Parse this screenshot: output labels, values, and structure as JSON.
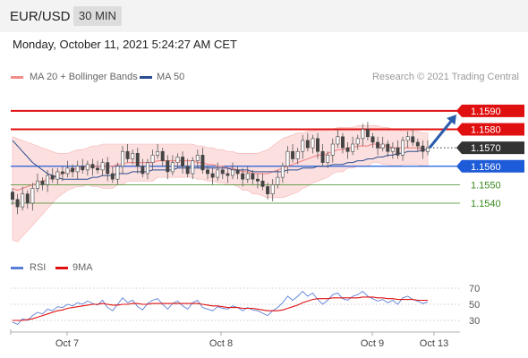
{
  "header": {
    "pair": "EUR/USD",
    "timeframe": "30 MIN"
  },
  "timestamp": "Monday, October 11, 2021 5:24:27 AM CET",
  "legend": {
    "bb_label": "MA 20 + Bollinger Bands",
    "ma50_label": "MA 50",
    "credit": "Research © 2021 Trading Central"
  },
  "rsi_legend": {
    "rsi_label": "RSI",
    "ma_label": "9MA"
  },
  "colors": {
    "bands": "#f38b8b",
    "ma50": "#2a4d8f",
    "resistance": "#e01010",
    "support": "#1e5bd8",
    "target": "#3a8a1f",
    "current": "#333333",
    "arrow": "#2a5caa",
    "rsi": "#5b7fd6",
    "rsi_ma": "#e01010"
  },
  "chart_data": [
    {
      "type": "candlestick",
      "y_range": [
        1.1524,
        1.1604
      ],
      "x_ticks": [
        "Oct 7",
        "Oct 8",
        "Oct 9",
        "Oct 13"
      ],
      "levels": [
        {
          "value": 1.159,
          "label": "1.1590",
          "kind": "resistance"
        },
        {
          "value": 1.158,
          "label": "1.1580",
          "kind": "resistance"
        },
        {
          "value": 1.157,
          "label": "1.1570",
          "kind": "current"
        },
        {
          "value": 1.156,
          "label": "1.1560",
          "kind": "support"
        },
        {
          "value": 1.155,
          "label": "1.1550",
          "kind": "target"
        },
        {
          "value": 1.154,
          "label": "1.1540",
          "kind": "target"
        }
      ],
      "close": [
        1.1542,
        1.1538,
        1.1545,
        1.154,
        1.1548,
        1.1552,
        1.155,
        1.1555,
        1.1553,
        1.1557,
        1.1556,
        1.1559,
        1.1557,
        1.156,
        1.1558,
        1.1561,
        1.1559,
        1.1558,
        1.1562,
        1.1556,
        1.1553,
        1.156,
        1.1568,
        1.1564,
        1.1567,
        1.156,
        1.1556,
        1.1562,
        1.1566,
        1.1568,
        1.1563,
        1.1557,
        1.1562,
        1.1565,
        1.156,
        1.1556,
        1.1563,
        1.1566,
        1.1558,
        1.1556,
        1.1554,
        1.1558,
        1.1556,
        1.1555,
        1.1558,
        1.1556,
        1.1553,
        1.1556,
        1.1553,
        1.1552,
        1.1549,
        1.1545,
        1.155,
        1.1554,
        1.156,
        1.1568,
        1.1564,
        1.1568,
        1.1574,
        1.157,
        1.1575,
        1.1568,
        1.1562,
        1.1566,
        1.1572,
        1.1576,
        1.157,
        1.1568,
        1.1572,
        1.1575,
        1.158,
        1.1576,
        1.1573,
        1.157,
        1.1572,
        1.1568,
        1.157,
        1.1566,
        1.1574,
        1.1576,
        1.1573,
        1.1571,
        1.1568,
        1.157
      ],
      "ma20": [
        1.1548,
        1.1547,
        1.1548,
        1.1549,
        1.155,
        1.1551,
        1.1552,
        1.1553,
        1.1554,
        1.1555,
        1.1556,
        1.1557,
        1.1558,
        1.1559,
        1.1559,
        1.156,
        1.156,
        1.156,
        1.156,
        1.156,
        1.156,
        1.1561,
        1.1561,
        1.1562,
        1.1562,
        1.1562,
        1.1562,
        1.1562,
        1.1562,
        1.1563,
        1.1563,
        1.1563,
        1.1563,
        1.1563,
        1.1563,
        1.1563,
        1.1563,
        1.1562,
        1.1562,
        1.1561,
        1.1561,
        1.156,
        1.156,
        1.1559,
        1.1559,
        1.1558,
        1.1557,
        1.1557,
        1.1556,
        1.1556,
        1.1556,
        1.1556,
        1.1557,
        1.1558,
        1.1559,
        1.156,
        1.1561,
        1.1562,
        1.1563,
        1.1564,
        1.1565,
        1.1566,
        1.1566,
        1.1567,
        1.1568,
        1.1569,
        1.1569,
        1.157,
        1.157,
        1.1571,
        1.1571,
        1.1571,
        1.1572,
        1.1572,
        1.1571,
        1.1571,
        1.157,
        1.157,
        1.157,
        1.157,
        1.157,
        1.157,
        1.1569,
        1.1569
      ],
      "bb_width": [
        0.0028,
        0.0028,
        0.0026,
        0.0024,
        0.0022,
        0.002,
        0.0018,
        0.0016,
        0.0014,
        0.0012,
        0.0011,
        0.001,
        0.001,
        0.001,
        0.001,
        0.001,
        0.0011,
        0.0011,
        0.0012,
        0.0012,
        0.0012,
        0.0011,
        0.0011,
        0.001,
        0.001,
        0.001,
        0.001,
        0.001,
        0.001,
        0.0009,
        0.0009,
        0.0009,
        0.0009,
        0.0009,
        0.0009,
        0.0009,
        0.0009,
        0.0009,
        0.0009,
        0.0009,
        0.0009,
        0.0009,
        0.0009,
        0.0009,
        0.0009,
        0.0009,
        0.001,
        0.001,
        0.0011,
        0.0011,
        0.0012,
        0.0013,
        0.0014,
        0.0015,
        0.0016,
        0.0016,
        0.0016,
        0.0016,
        0.0015,
        0.0015,
        0.0014,
        0.0014,
        0.0013,
        0.0013,
        0.0012,
        0.0012,
        0.0012,
        0.0011,
        0.0011,
        0.0011,
        0.0011,
        0.0011,
        0.001,
        0.001,
        0.001,
        0.001,
        0.001,
        0.001,
        0.0009,
        0.0009,
        0.0009,
        0.0009,
        0.0009,
        0.0009
      ],
      "ma50": [
        1.1574,
        1.1571,
        1.1568,
        1.1565,
        1.1562,
        1.156,
        1.1558,
        1.1556,
        1.1555,
        1.1554,
        1.1553,
        1.1553,
        1.1553,
        1.1553,
        1.1553,
        1.1553,
        1.1554,
        1.1554,
        1.1555,
        1.1555,
        1.1555,
        1.1556,
        1.1556,
        1.1556,
        1.1557,
        1.1557,
        1.1557,
        1.1557,
        1.1558,
        1.1558,
        1.1558,
        1.1558,
        1.1558,
        1.1559,
        1.1559,
        1.1559,
        1.1559,
        1.1559,
        1.1559,
        1.1559,
        1.1559,
        1.1559,
        1.1559,
        1.1559,
        1.1558,
        1.1558,
        1.1558,
        1.1558,
        1.1557,
        1.1557,
        1.1557,
        1.1557,
        1.1557,
        1.1557,
        1.1557,
        1.1558,
        1.1558,
        1.1558,
        1.1559,
        1.1559,
        1.1559,
        1.156,
        1.156,
        1.156,
        1.1561,
        1.1561,
        1.1561,
        1.1562,
        1.1562,
        1.1563,
        1.1563,
        1.1564,
        1.1564,
        1.1565,
        1.1565,
        1.1566,
        1.1566,
        1.1567,
        1.1567,
        1.1568,
        1.1568,
        1.1568,
        1.1569,
        1.1569
      ],
      "forecast_arrow": {
        "from": 1.157,
        "to": 1.1588
      }
    },
    {
      "type": "line",
      "y_range": [
        20,
        80
      ],
      "y_ticks": [
        70,
        50,
        30
      ],
      "rsi": [
        28,
        25,
        32,
        30,
        36,
        40,
        38,
        44,
        42,
        47,
        46,
        50,
        48,
        52,
        50,
        54,
        51,
        49,
        55,
        46,
        42,
        50,
        58,
        52,
        55,
        47,
        43,
        51,
        55,
        57,
        50,
        44,
        51,
        54,
        48,
        44,
        52,
        55,
        46,
        44,
        42,
        47,
        45,
        44,
        48,
        46,
        42,
        46,
        43,
        42,
        39,
        36,
        42,
        46,
        52,
        60,
        55,
        60,
        66,
        60,
        64,
        56,
        50,
        55,
        62,
        64,
        57,
        55,
        60,
        62,
        66,
        60,
        57,
        54,
        56,
        52,
        55,
        50,
        58,
        60,
        56,
        54,
        51,
        53
      ],
      "rsi_ma": [
        30,
        30,
        30,
        31,
        32,
        34,
        36,
        38,
        40,
        42,
        43,
        45,
        46,
        47,
        48,
        49,
        50,
        50,
        51,
        50,
        49,
        49,
        50,
        50,
        51,
        51,
        50,
        50,
        51,
        51,
        51,
        51,
        51,
        51,
        51,
        51,
        51,
        51,
        50,
        49,
        48,
        48,
        47,
        46,
        46,
        46,
        45,
        45,
        45,
        44,
        43,
        42,
        42,
        42,
        43,
        45,
        47,
        49,
        52,
        54,
        56,
        57,
        57,
        57,
        58,
        58,
        58,
        58,
        58,
        58,
        59,
        59,
        59,
        58,
        58,
        57,
        57,
        56,
        56,
        56,
        56,
        55,
        55,
        55
      ]
    }
  ]
}
